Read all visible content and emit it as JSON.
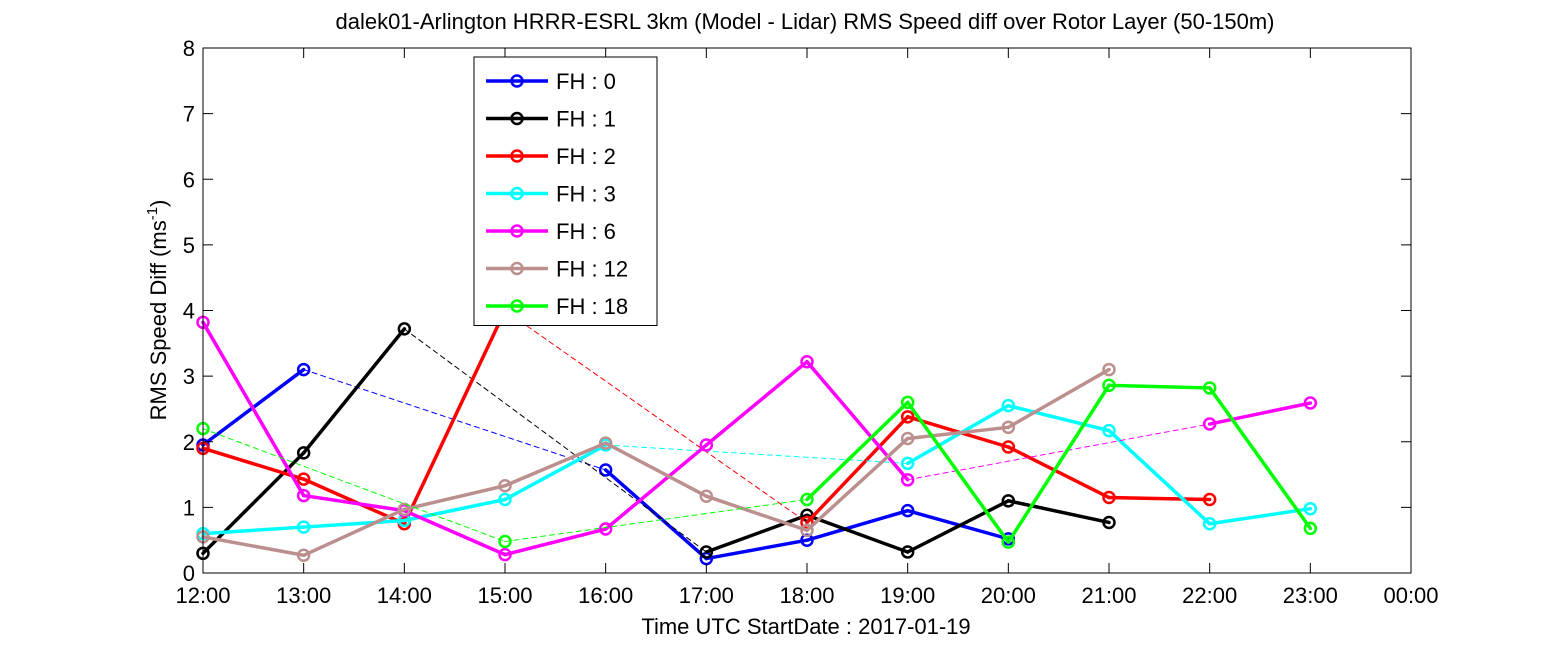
{
  "chart_data": {
    "type": "line",
    "title": "dalek01-Arlington HRRR-ESRL 3km (Model - Lidar) RMS Speed diff over Rotor Layer (50-150m)",
    "xlabel": "Time UTC    StartDate : 2017-01-19",
    "ylabel_main": "RMS Speed Diff (ms",
    "ylabel_sup": "-1",
    "ylabel_end": ")",
    "x_ticks": [
      "12:00",
      "13:00",
      "14:00",
      "15:00",
      "16:00",
      "17:00",
      "18:00",
      "19:00",
      "20:00",
      "21:00",
      "22:00",
      "23:00",
      "00:00"
    ],
    "y_ticks": [
      "0",
      "1",
      "2",
      "3",
      "4",
      "5",
      "6",
      "7",
      "8"
    ],
    "ylim": [
      0,
      8
    ],
    "grid": false,
    "legend_position": "top-left",
    "series": [
      {
        "name": "FH : 0",
        "color": "#0000ff",
        "points": [
          [
            0,
            1.95
          ],
          [
            1,
            3.1
          ],
          [
            4,
            1.57
          ],
          [
            5,
            0.22
          ],
          [
            6,
            0.5
          ],
          [
            7,
            0.95
          ],
          [
            8,
            0.52
          ]
        ]
      },
      {
        "name": "FH : 1",
        "color": "#000000",
        "points": [
          [
            0,
            0.3
          ],
          [
            1,
            1.83
          ],
          [
            2,
            3.72
          ],
          [
            5,
            0.32
          ],
          [
            6,
            0.88
          ],
          [
            7,
            0.32
          ],
          [
            8,
            1.1
          ],
          [
            9,
            0.77
          ]
        ]
      },
      {
        "name": "FH : 2",
        "color": "#ff0000",
        "points": [
          [
            0,
            1.9
          ],
          [
            1,
            1.43
          ],
          [
            2,
            0.75
          ],
          [
            3,
            4.0
          ],
          [
            6,
            0.77
          ],
          [
            7,
            2.38
          ],
          [
            8,
            1.92
          ],
          [
            9,
            1.15
          ],
          [
            10,
            1.12
          ]
        ]
      },
      {
        "name": "FH : 3",
        "color": "#00ffff",
        "points": [
          [
            0,
            0.6
          ],
          [
            1,
            0.7
          ],
          [
            2,
            0.8
          ],
          [
            3,
            1.12
          ],
          [
            4,
            1.95
          ],
          [
            7,
            1.67
          ],
          [
            8,
            2.55
          ],
          [
            9,
            2.17
          ],
          [
            10,
            0.75
          ],
          [
            11,
            0.98
          ]
        ]
      },
      {
        "name": "FH : 6",
        "color": "#ff00ff",
        "points": [
          [
            0,
            3.82
          ],
          [
            1,
            1.18
          ],
          [
            2,
            0.95
          ],
          [
            3,
            0.28
          ],
          [
            4,
            0.67
          ],
          [
            5,
            1.95
          ],
          [
            6,
            3.22
          ],
          [
            7,
            1.42
          ],
          [
            10,
            2.27
          ],
          [
            11,
            2.59
          ]
        ]
      },
      {
        "name": "FH : 12",
        "color": "#bc8f8f",
        "points": [
          [
            0,
            0.55
          ],
          [
            1,
            0.27
          ],
          [
            2,
            0.97
          ],
          [
            3,
            1.33
          ],
          [
            4,
            1.98
          ],
          [
            5,
            1.17
          ],
          [
            6,
            0.65
          ],
          [
            7,
            2.05
          ],
          [
            8,
            2.22
          ],
          [
            9,
            3.1
          ]
        ]
      },
      {
        "name": "FH : 18",
        "color": "#00ff00",
        "points": [
          [
            0,
            2.2
          ],
          [
            3,
            0.48
          ],
          [
            6,
            1.12
          ],
          [
            7,
            2.6
          ],
          [
            8,
            0.47
          ],
          [
            9,
            2.86
          ],
          [
            10,
            2.82
          ],
          [
            11,
            0.68
          ]
        ]
      }
    ]
  }
}
